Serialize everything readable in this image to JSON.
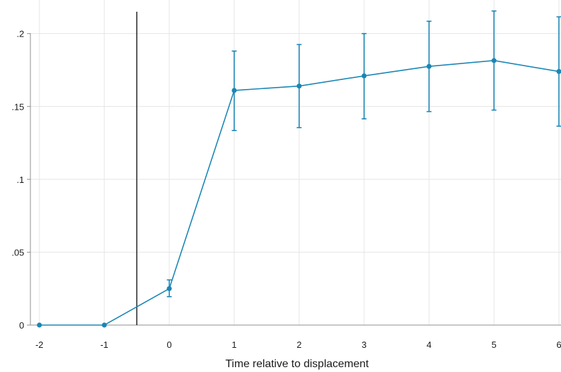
{
  "chart_data": {
    "type": "line",
    "title": "",
    "xlabel": "Time relative to displacement",
    "ylabel": "",
    "xlim": [
      -2,
      6
    ],
    "ylim": [
      0,
      0.215
    ],
    "grid": true,
    "x": [
      -2,
      -1,
      0,
      1,
      2,
      3,
      4,
      5,
      6
    ],
    "series": [
      {
        "values": [
          0,
          0,
          0.025,
          0.161,
          0.164,
          0.171,
          0.1775,
          0.1815,
          0.174
        ],
        "ci_lower": [
          null,
          null,
          0.0195,
          0.1335,
          0.1355,
          0.1415,
          0.1465,
          0.1475,
          0.1365
        ],
        "ci_upper": [
          null,
          null,
          0.031,
          0.188,
          0.1925,
          0.2,
          0.2085,
          0.2155,
          0.2115
        ]
      }
    ],
    "xticks": [
      {
        "value": -2,
        "label": "-2"
      },
      {
        "value": -1,
        "label": "-1"
      },
      {
        "value": 0,
        "label": "0"
      },
      {
        "value": 1,
        "label": "1"
      },
      {
        "value": 2,
        "label": "2"
      },
      {
        "value": 3,
        "label": "3"
      },
      {
        "value": 4,
        "label": "4"
      },
      {
        "value": 5,
        "label": "5"
      },
      {
        "value": 6,
        "label": "6"
      }
    ],
    "yticks": [
      {
        "value": 0,
        "label": "0"
      },
      {
        "value": 0.05,
        "label": ".05"
      },
      {
        "value": 0.1,
        "label": ".1"
      },
      {
        "value": 0.15,
        "label": ".15"
      },
      {
        "value": 0.2,
        "label": ".2"
      }
    ],
    "reference_line_x": -0.5,
    "colors": {
      "series": "#1a86b5",
      "grid": "#e4e4e4",
      "axis": "#8c8c8c",
      "reference": "#000000"
    }
  }
}
